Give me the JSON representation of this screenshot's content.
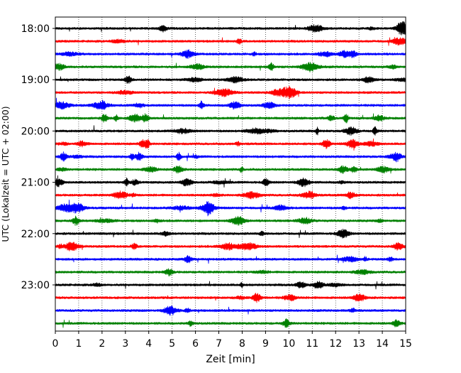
{
  "chart_data": {
    "type": "line",
    "title": "",
    "xlabel": "Zeit  [min]",
    "ylabel": "UTC (Lokalzeit = UTC + 02:00)",
    "xlim": [
      0,
      15
    ],
    "x_ticks": [
      "0",
      "1",
      "2",
      "3",
      "4",
      "5",
      "6",
      "7",
      "8",
      "9",
      "10",
      "11",
      "12",
      "13",
      "14",
      "15"
    ],
    "y_ticks": [
      "18:00",
      "19:00",
      "20:00",
      "21:00",
      "22:00",
      "23:00"
    ],
    "grid": "vertical-dotted",
    "trace_colors": [
      "#000000",
      "#ff0000",
      "#0000ff",
      "#008000"
    ],
    "traces": [
      {
        "start": "18:00",
        "color": "#000000"
      },
      {
        "start": "18:15",
        "color": "#ff0000"
      },
      {
        "start": "18:30",
        "color": "#0000ff"
      },
      {
        "start": "18:45",
        "color": "#008000"
      },
      {
        "start": "19:00",
        "color": "#000000"
      },
      {
        "start": "19:15",
        "color": "#ff0000"
      },
      {
        "start": "19:30",
        "color": "#0000ff"
      },
      {
        "start": "19:45",
        "color": "#008000"
      },
      {
        "start": "20:00",
        "color": "#000000"
      },
      {
        "start": "20:15",
        "color": "#ff0000"
      },
      {
        "start": "20:30",
        "color": "#0000ff"
      },
      {
        "start": "20:45",
        "color": "#008000"
      },
      {
        "start": "21:00",
        "color": "#000000"
      },
      {
        "start": "21:15",
        "color": "#ff0000"
      },
      {
        "start": "21:30",
        "color": "#0000ff"
      },
      {
        "start": "21:45",
        "color": "#008000"
      },
      {
        "start": "22:00",
        "color": "#000000"
      },
      {
        "start": "22:15",
        "color": "#ff0000"
      },
      {
        "start": "22:30",
        "color": "#0000ff"
      },
      {
        "start": "22:45",
        "color": "#008000"
      },
      {
        "start": "23:00",
        "color": "#000000"
      },
      {
        "start": "23:15",
        "color": "#ff0000"
      },
      {
        "start": "23:30",
        "color": "#0000ff"
      },
      {
        "start": "23:45",
        "color": "#008000"
      }
    ]
  }
}
